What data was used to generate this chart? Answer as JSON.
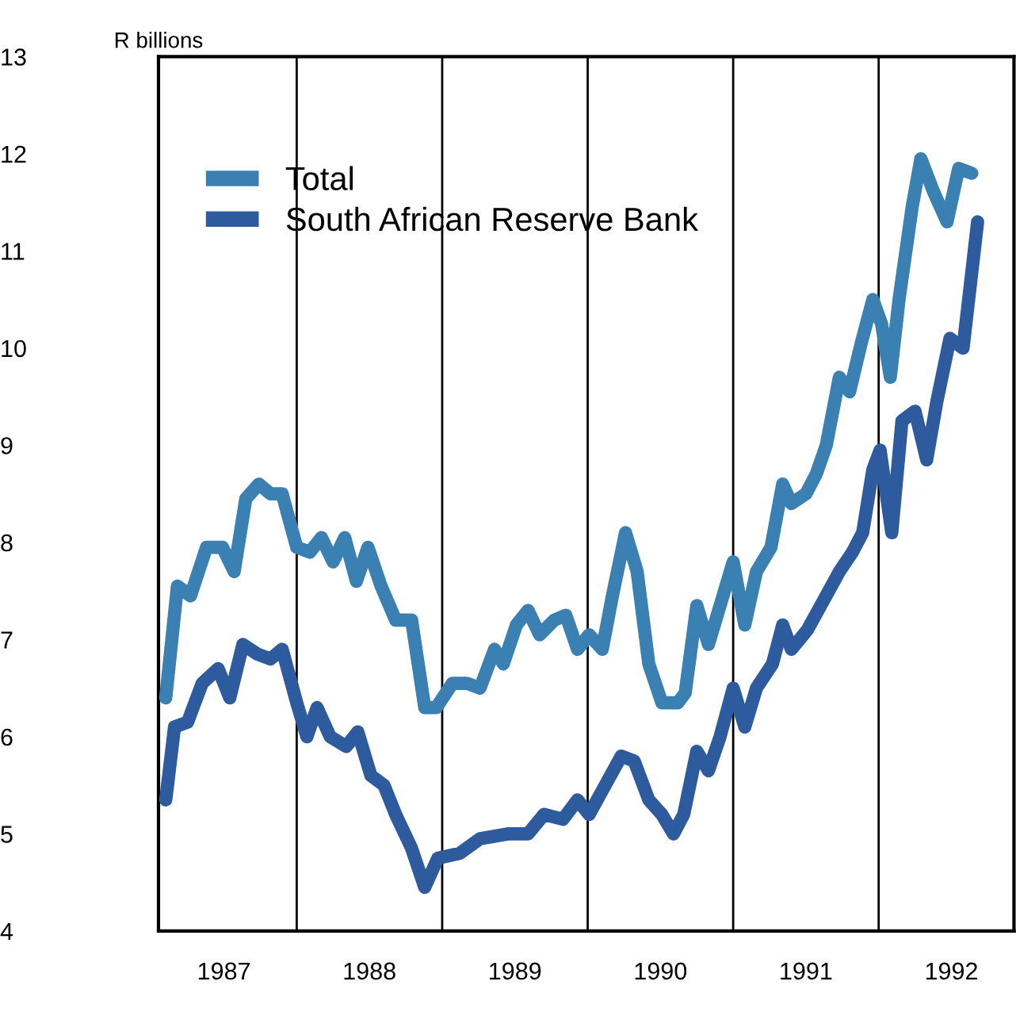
{
  "chart_data": {
    "type": "line",
    "ylabel": "R billions",
    "xlim": [
      1987.05,
      1992.93
    ],
    "ylim": [
      4,
      13
    ],
    "xticks": [
      {
        "value": 1987.5,
        "label": "1987"
      },
      {
        "value": 1988.5,
        "label": "1988"
      },
      {
        "value": 1989.5,
        "label": "1989"
      },
      {
        "value": 1990.5,
        "label": "1990"
      },
      {
        "value": 1991.5,
        "label": "1991"
      },
      {
        "value": 1992.5,
        "label": "1992"
      }
    ],
    "yticks": [
      4,
      5,
      6,
      7,
      8,
      9,
      10,
      11,
      12,
      13
    ],
    "ref_lines": [
      {
        "axis": "x",
        "value": 1988,
        "color": "#000000"
      },
      {
        "axis": "x",
        "value": 1989,
        "color": "#000000"
      },
      {
        "axis": "x",
        "value": 1990,
        "color": "#000000"
      },
      {
        "axis": "x",
        "value": 1991,
        "color": "#000000"
      },
      {
        "axis": "x",
        "value": 1992,
        "color": "#000000"
      }
    ],
    "grid": false,
    "legend": "top left",
    "marker": "none",
    "line_style": "solid",
    "series": [
      {
        "name": "Total",
        "color": "#3a80b3",
        "x": [
          1987.1,
          1987.18,
          1987.27,
          1987.38,
          1987.49,
          1987.57,
          1987.65,
          1987.74,
          1987.82,
          1987.9,
          1988.0,
          1988.09,
          1988.17,
          1988.25,
          1988.33,
          1988.41,
          1988.49,
          1988.58,
          1988.68,
          1988.79,
          1988.88,
          1988.96,
          1989.07,
          1989.17,
          1989.26,
          1989.36,
          1989.42,
          1989.51,
          1989.59,
          1989.67,
          1989.77,
          1989.85,
          1989.93,
          1990.01,
          1990.1,
          1990.17,
          1990.26,
          1990.34,
          1990.42,
          1990.51,
          1990.62,
          1990.67,
          1990.75,
          1990.83,
          1990.91,
          1991.0,
          1991.08,
          1991.16,
          1991.26,
          1991.34,
          1991.4,
          1991.5,
          1991.57,
          1991.64,
          1991.73,
          1991.8,
          1991.88,
          1991.96,
          1992.02,
          1992.08,
          1992.14,
          1992.23,
          1992.29,
          1992.38,
          1992.47,
          1992.55,
          1992.64
        ],
        "values": [
          6.4,
          7.55,
          7.45,
          7.95,
          7.95,
          7.7,
          8.45,
          8.6,
          8.5,
          8.5,
          7.95,
          7.9,
          8.05,
          7.8,
          8.05,
          7.6,
          7.95,
          7.55,
          7.2,
          7.2,
          6.3,
          6.3,
          6.55,
          6.55,
          6.5,
          6.9,
          6.75,
          7.15,
          7.3,
          7.05,
          7.2,
          7.25,
          6.9,
          7.05,
          6.9,
          7.45,
          8.1,
          7.7,
          6.75,
          6.35,
          6.35,
          6.45,
          7.35,
          6.95,
          7.35,
          7.8,
          7.15,
          7.7,
          7.95,
          8.6,
          8.4,
          8.5,
          8.7,
          9.0,
          9.7,
          9.55,
          10.05,
          10.5,
          10.25,
          9.7,
          10.5,
          11.45,
          11.95,
          11.6,
          11.3,
          11.85,
          11.8
        ]
      },
      {
        "name": "South African Reserve Bank",
        "color": "#2e5a9e",
        "x": [
          1987.1,
          1987.16,
          1987.25,
          1987.35,
          1987.46,
          1987.54,
          1987.63,
          1987.73,
          1987.82,
          1987.9,
          1988.0,
          1988.07,
          1988.14,
          1988.23,
          1988.34,
          1988.42,
          1988.51,
          1988.6,
          1988.68,
          1988.79,
          1988.88,
          1988.97,
          1989.12,
          1989.26,
          1989.45,
          1989.59,
          1989.7,
          1989.83,
          1989.93,
          1990.01,
          1990.12,
          1990.23,
          1990.32,
          1990.42,
          1990.51,
          1990.59,
          1990.66,
          1990.75,
          1990.83,
          1990.91,
          1991.0,
          1991.08,
          1991.16,
          1991.27,
          1991.34,
          1991.4,
          1991.51,
          1991.62,
          1991.73,
          1991.82,
          1991.89,
          1991.96,
          1992.01,
          1992.09,
          1992.16,
          1992.25,
          1992.33,
          1992.4,
          1992.49,
          1992.58,
          1992.68
        ],
        "values": [
          5.35,
          6.1,
          6.15,
          6.55,
          6.7,
          6.4,
          6.95,
          6.85,
          6.8,
          6.9,
          6.35,
          6.0,
          6.3,
          6.0,
          5.9,
          6.05,
          5.6,
          5.5,
          5.2,
          4.85,
          4.45,
          4.75,
          4.8,
          4.95,
          5.0,
          5.0,
          5.2,
          5.15,
          5.35,
          5.2,
          5.5,
          5.8,
          5.75,
          5.35,
          5.2,
          5.0,
          5.2,
          5.85,
          5.65,
          6.0,
          6.5,
          6.1,
          6.5,
          6.75,
          7.15,
          6.9,
          7.1,
          7.4,
          7.7,
          7.9,
          8.1,
          8.75,
          8.95,
          8.1,
          9.25,
          9.35,
          8.85,
          9.45,
          10.1,
          10.0,
          11.3
        ]
      }
    ]
  }
}
